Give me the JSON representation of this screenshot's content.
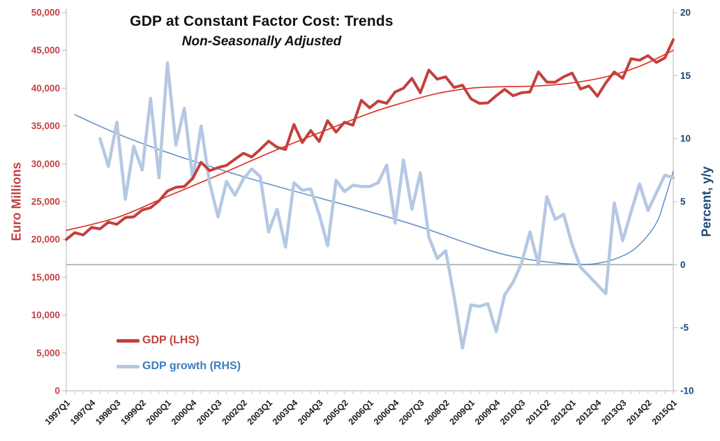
{
  "chart_data": {
    "type": "line",
    "title": "GDP at Constant Factor Cost: Trends",
    "subtitle": "Non-Seasonally Adjusted",
    "categories": [
      "1997Q1",
      "1997Q2",
      "1997Q3",
      "1997Q4",
      "1998Q1",
      "1998Q2",
      "1998Q3",
      "1998Q4",
      "1999Q1",
      "1999Q2",
      "1999Q3",
      "1999Q4",
      "2000Q1",
      "2000Q2",
      "2000Q3",
      "2000Q4",
      "2001Q1",
      "2001Q2",
      "2001Q3",
      "2001Q4",
      "2002Q1",
      "2002Q2",
      "2002Q3",
      "2002Q4",
      "2003Q1",
      "2003Q2",
      "2003Q3",
      "2003Q4",
      "2004Q1",
      "2004Q2",
      "2004Q3",
      "2004Q4",
      "2005Q1",
      "2005Q2",
      "2005Q3",
      "2005Q4",
      "2006Q1",
      "2006Q2",
      "2006Q3",
      "2006Q4",
      "2007Q1",
      "2007Q2",
      "2007Q3",
      "2007Q4",
      "2008Q1",
      "2008Q2",
      "2008Q3",
      "2008Q4",
      "2009Q1",
      "2009Q2",
      "2009Q3",
      "2009Q4",
      "2010Q1",
      "2010Q2",
      "2010Q3",
      "2010Q4",
      "2011Q1",
      "2011Q2",
      "2011Q3",
      "2011Q4",
      "2012Q1",
      "2012Q2",
      "2012Q3",
      "2012Q4",
      "2013Q1",
      "2013Q2",
      "2013Q3",
      "2013Q4",
      "2014Q1",
      "2014Q2",
      "2014Q3",
      "2014Q4",
      "2015Q1"
    ],
    "x_tick_every": 3,
    "x_tick_labels_shown": [
      "1997Q1",
      "1997Q4",
      "1998Q3",
      "1999Q2",
      "2000Q1",
      "2000Q4",
      "2001Q3",
      "2002Q2",
      "2003Q1",
      "2003Q4",
      "2004Q3",
      "2005Q2",
      "2006Q1",
      "2006Q4",
      "2007Q3",
      "2008Q2",
      "2009Q1",
      "2009Q4",
      "2010Q3",
      "2011Q2",
      "2012Q1",
      "2012Q4",
      "2013Q3",
      "2014Q2",
      "2015Q1"
    ],
    "series": [
      {
        "name": "GDP (LHS)",
        "axis": "left",
        "style": "data",
        "color": "#c2413d",
        "width": 4,
        "values": [
          20000,
          20900,
          20600,
          21600,
          21400,
          22300,
          22000,
          22900,
          23000,
          23900,
          24200,
          25100,
          26400,
          26900,
          27000,
          28100,
          30200,
          29100,
          29500,
          29800,
          30600,
          31400,
          30900,
          31900,
          33000,
          32200,
          31900,
          35200,
          32800,
          34400,
          32950,
          35700,
          34200,
          35500,
          35100,
          38400,
          37400,
          38300,
          38000,
          39500,
          40000,
          41300,
          39400,
          42400,
          41200,
          41500,
          40100,
          40400,
          38600,
          38000,
          38050,
          39000,
          39850,
          39000,
          39400,
          39500,
          42150,
          40800,
          40800,
          41500,
          42000,
          39900,
          40300,
          38950,
          40700,
          42150,
          41300,
          43900,
          43700,
          44300,
          43400,
          44000,
          46400
        ]
      },
      {
        "name": "GDP growth (RHS)",
        "axis": "right",
        "style": "data",
        "color": "#b5c8e3",
        "width": 4.5,
        "values": [
          null,
          null,
          null,
          null,
          10.0,
          7.8,
          11.3,
          5.2,
          9.4,
          7.5,
          13.2,
          6.9,
          16.0,
          9.5,
          12.4,
          6.8,
          11.0,
          6.5,
          3.8,
          6.6,
          5.5,
          6.8,
          7.6,
          7.0,
          2.6,
          4.4,
          1.4,
          6.5,
          5.9,
          6.0,
          4.0,
          1.5,
          6.7,
          5.8,
          6.3,
          6.2,
          6.2,
          6.5,
          7.9,
          3.3,
          8.3,
          4.4,
          7.3,
          2.2,
          0.5,
          1.1,
          -2.5,
          -6.6,
          -3.2,
          -3.3,
          -3.1,
          -5.3,
          -2.4,
          -1.4,
          0.1,
          2.6,
          0.0,
          5.4,
          3.6,
          4.0,
          1.6,
          -0.2,
          -0.9,
          -1.6,
          -2.3,
          4.9,
          1.9,
          4.2,
          6.4,
          4.3,
          5.7,
          7.1,
          6.9
        ]
      },
      {
        "name": "GDP polynomial trend",
        "axis": "left",
        "style": "trend",
        "color": "#e2291f",
        "width": 1.6,
        "control_points": [
          [
            0,
            21200
          ],
          [
            6,
            22900
          ],
          [
            12,
            25700
          ],
          [
            18,
            28500
          ],
          [
            24,
            31400
          ],
          [
            30,
            34100
          ],
          [
            36,
            36700
          ],
          [
            40,
            38100
          ],
          [
            44,
            39300
          ],
          [
            48,
            40000
          ],
          [
            52,
            40200
          ],
          [
            56,
            40300
          ],
          [
            60,
            40700
          ],
          [
            64,
            41500
          ],
          [
            68,
            42900
          ],
          [
            72,
            45000
          ]
        ]
      },
      {
        "name": "GDP growth polynomial trend",
        "axis": "right",
        "style": "trend",
        "color": "#5d8dc6",
        "width": 1.5,
        "control_points": [
          [
            1,
            11.9
          ],
          [
            6,
            10.4
          ],
          [
            12,
            8.9
          ],
          [
            18,
            7.6
          ],
          [
            24,
            6.4
          ],
          [
            30,
            5.3
          ],
          [
            36,
            4.2
          ],
          [
            42,
            3.0
          ],
          [
            48,
            1.6
          ],
          [
            52,
            0.8
          ],
          [
            56,
            0.3
          ],
          [
            60,
            0.05
          ],
          [
            63,
            0.1
          ],
          [
            66,
            0.7
          ],
          [
            68,
            1.6
          ],
          [
            70,
            3.3
          ],
          [
            71,
            5.2
          ],
          [
            72,
            7.4
          ]
        ]
      }
    ],
    "y_left": {
      "label": "Euro Millions",
      "min": 0,
      "max": 50000,
      "step": 5000,
      "color": "#c33f44",
      "tick_labels": [
        "0",
        "5,000",
        "10,000",
        "15,000",
        "20,000",
        "25,000",
        "30,000",
        "35,000",
        "40,000",
        "45,000",
        "50,000"
      ]
    },
    "y_right": {
      "label": "Percent, y/y",
      "min": -10,
      "max": 20,
      "step": 5,
      "color": "#1c4677",
      "tick_labels": [
        "-10",
        "-5",
        "0",
        "5",
        "10",
        "15",
        "20"
      ]
    },
    "zero_line_right_value": 0,
    "grid": "off",
    "legend_position": "inside-bottom-left",
    "colors": {
      "axis_line": "#c0c0c0",
      "tick_mark": "#c6c6c6",
      "zero_line": "#a8a8a8",
      "x_label": "#1c1c1c",
      "legend_gdp_text": "#c2413d",
      "legend_growth_text": "#3f7cc1",
      "title_text": "#111111"
    }
  }
}
